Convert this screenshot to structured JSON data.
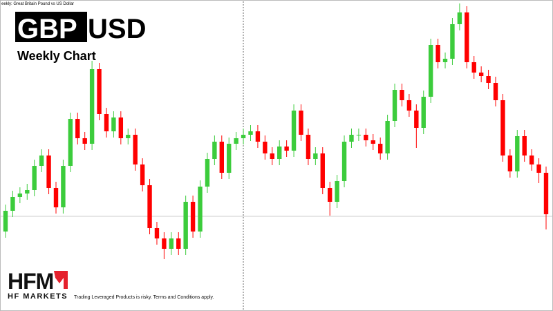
{
  "chart_data": {
    "type": "candlestick",
    "header": "eekly:  Great Britain Pound vs US Dollar",
    "title_base": "GBP",
    "title_quote": "USD",
    "subtitle": "Weekly Chart",
    "logo": "HFM",
    "brand": "HF MARKETS",
    "disclaimer": "Trading Leveraged Products is risky. Terms and Conditions apply.",
    "up_color": "#3ccc3c",
    "down_color": "#ff0000",
    "ylim": [
      0,
      450
    ],
    "price_line": 137,
    "open": [
      115,
      145,
      165,
      170,
      175,
      210,
      225,
      178,
      150,
      210,
      278,
      250,
      242,
      350,
      285,
      260,
      280,
      250,
      255,
      212,
      182,
      120,
      105,
      90,
      105,
      90,
      158,
      115,
      180,
      220,
      245,
      200,
      242,
      250,
      255,
      260,
      245,
      228,
      220,
      238,
      232,
      290,
      255,
      220,
      228,
      178,
      158,
      188,
      245,
      255,
      255,
      247,
      242,
      228,
      275,
      320,
      305,
      290,
      265,
      310,
      385,
      360,
      365,
      415,
      432,
      360,
      345,
      340,
      330,
      305,
      225,
      202,
      253,
      225,
      212,
      200
    ],
    "high": [
      154,
      174,
      179,
      184,
      219,
      234,
      234,
      187,
      219,
      287,
      287,
      259,
      362,
      359,
      294,
      289,
      289,
      264,
      264,
      221,
      191,
      129,
      114,
      114,
      114,
      167,
      167,
      189,
      229,
      254,
      254,
      251,
      259,
      264,
      269,
      269,
      254,
      237,
      247,
      247,
      299,
      299,
      264,
      237,
      237,
      187,
      197,
      254,
      264,
      264,
      264,
      256,
      251,
      284,
      329,
      329,
      314,
      299,
      319,
      394,
      394,
      374,
      424,
      445,
      441,
      369,
      354,
      349,
      339,
      314,
      234,
      262,
      262,
      234,
      221,
      209
    ],
    "low": [
      106,
      136,
      156,
      161,
      166,
      201,
      169,
      141,
      141,
      201,
      241,
      233,
      233,
      276,
      251,
      251,
      241,
      241,
      203,
      173,
      111,
      96,
      75,
      81,
      81,
      81,
      106,
      106,
      171,
      211,
      191,
      191,
      233,
      241,
      246,
      236,
      219,
      211,
      211,
      223,
      223,
      246,
      211,
      211,
      169,
      138,
      149,
      179,
      236,
      246,
      238,
      233,
      219,
      219,
      266,
      296,
      281,
      236,
      256,
      301,
      351,
      351,
      356,
      406,
      351,
      336,
      331,
      321,
      296,
      216,
      193,
      193,
      216,
      203,
      185,
      118
    ],
    "close": [
      145,
      165,
      170,
      175,
      210,
      225,
      178,
      150,
      210,
      278,
      250,
      242,
      350,
      285,
      260,
      280,
      250,
      255,
      212,
      182,
      120,
      105,
      90,
      105,
      90,
      158,
      115,
      180,
      220,
      245,
      200,
      242,
      250,
      255,
      260,
      245,
      228,
      220,
      238,
      232,
      290,
      255,
      220,
      228,
      178,
      158,
      188,
      245,
      255,
      255,
      247,
      242,
      228,
      275,
      320,
      305,
      290,
      265,
      310,
      385,
      360,
      365,
      415,
      432,
      360,
      345,
      340,
      330,
      305,
      225,
      202,
      253,
      225,
      212,
      200,
      140
    ]
  }
}
